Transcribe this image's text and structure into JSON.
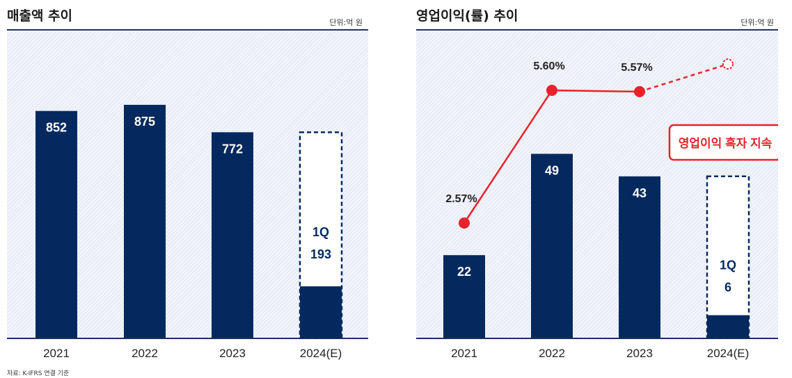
{
  "left_panel": {
    "title": "매출액 추이",
    "unit": "단위:억 원"
  },
  "right_panel": {
    "title": "영업이익(률) 추이",
    "unit": "단위:억 원",
    "callout": "영업이익 흑자 지속"
  },
  "footnote": "자료: K-IFRS 연결 기준",
  "colors": {
    "bar": "#04295f",
    "line": "#e8212a",
    "rule": "#1f2d63",
    "forecast_border": "#04295f"
  },
  "chart_data": [
    {
      "type": "bar",
      "title": "매출액 추이",
      "unit": "단위:억 원",
      "categories": [
        "2021",
        "2022",
        "2023",
        "2024(E)"
      ],
      "values": [
        852,
        875,
        772,
        193
      ],
      "value_labels": [
        "852",
        "875",
        "772",
        "193"
      ],
      "forecast": {
        "category": "2024(E)",
        "label": "1Q",
        "actual": 193,
        "estimate_total": 772
      },
      "ylim": [
        0,
        1100
      ],
      "grid": false
    },
    {
      "type": "bar",
      "title": "영업이익(률) 추이",
      "unit": "단위:억 원",
      "categories": [
        "2021",
        "2022",
        "2023",
        "2024(E)"
      ],
      "values": [
        22,
        49,
        43,
        6
      ],
      "value_labels": [
        "22",
        "49",
        "43",
        "6"
      ],
      "forecast": {
        "category": "2024(E)",
        "label": "1Q",
        "actual": 6,
        "estimate_total": 43
      },
      "ylim": [
        0,
        70
      ],
      "line_series": {
        "values": [
          2.57,
          5.6,
          5.57,
          6.2
        ],
        "labels": [
          "2.57%",
          "5.60%",
          "5.57%",
          ""
        ],
        "ylim": [
          0,
          7
        ],
        "last_is_forecast": true
      },
      "grid": false
    }
  ]
}
